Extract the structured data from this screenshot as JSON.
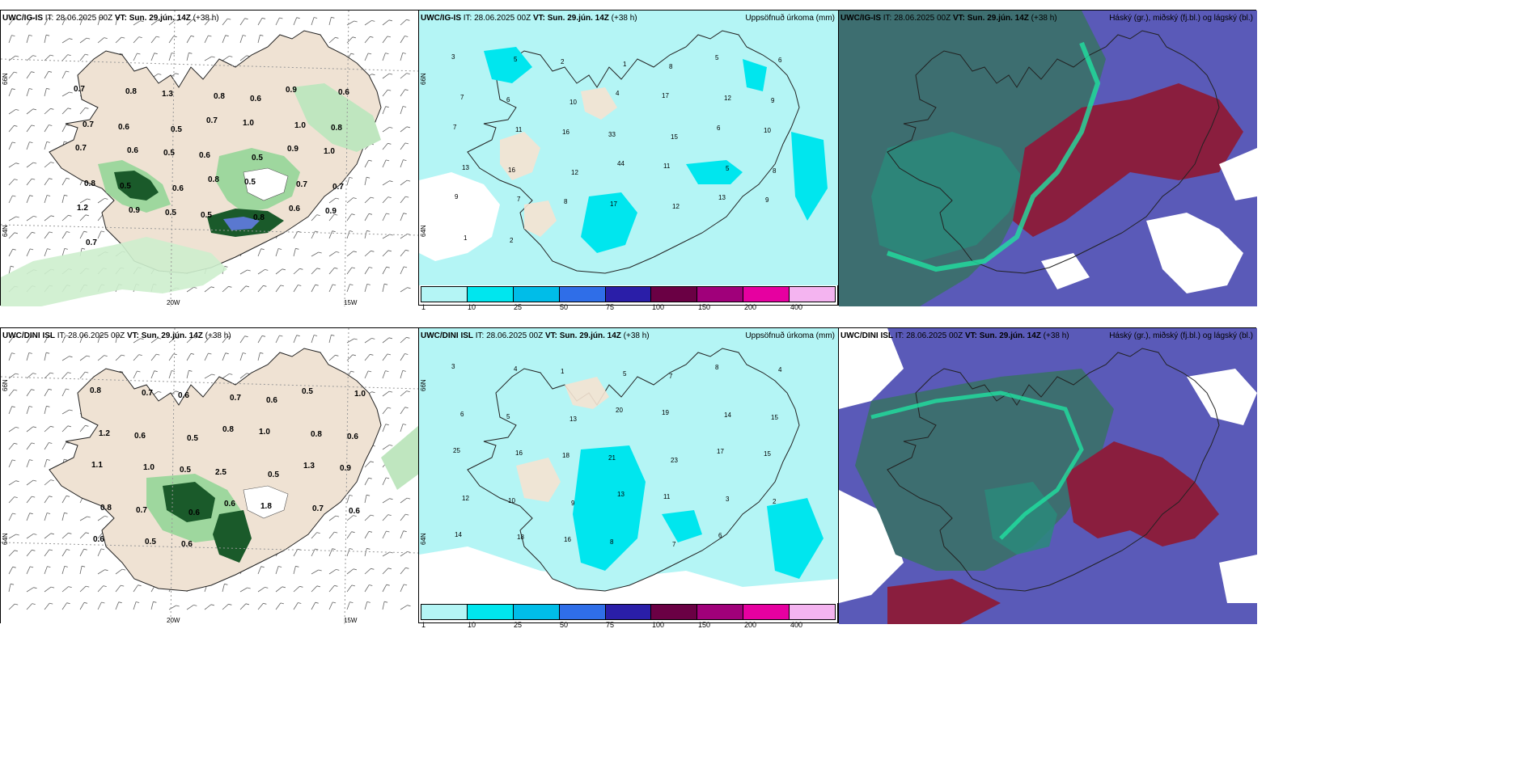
{
  "panels": {
    "tl": {
      "model": "UWC/IG-IS",
      "it": "IT: 28.06.2025 00Z",
      "vt": "VT: Sun. 29.jún. 14Z",
      "lead": "(+38 h)",
      "right": ""
    },
    "tm": {
      "model": "UWC/IG-IS",
      "it": "IT: 28.06.2025 00Z",
      "vt": "VT: Sun. 29.jún. 14Z",
      "lead": "(+38 h)",
      "right": "Uppsöfnuð úrkoma (mm)"
    },
    "tr": {
      "model": "UWC/IG-IS",
      "it": "IT: 28.06.2025 00Z",
      "vt": "VT: Sun. 29.jún. 14Z",
      "lead": "(+38 h)",
      "right": "Háský (gr.), miðský (fj.bl.) og lágský (bl.)"
    },
    "bl": {
      "model": "UWC/DINI ISL",
      "it": "IT: 28.06.2025 00Z",
      "vt": "VT: Sun. 29.jún. 14Z",
      "lead": "(+38 h)",
      "right": ""
    },
    "bm": {
      "model": "UWC/DINI ISL",
      "it": "IT: 28.06.2025 00Z",
      "vt": "VT: Sun. 29.jún. 14Z",
      "lead": "(+38 h)",
      "right": "Uppsöfnuð úrkoma (mm)"
    },
    "br": {
      "model": "UWC/DINI ISL",
      "it": "IT: 28.06.2025 00Z",
      "vt": "VT: Sun. 29.jún. 14Z",
      "lead": "(+38 h)",
      "right": "Háský (gr.), miðský (fj.bl.) og lágský (bl.)"
    }
  },
  "axes": {
    "lon20": "20W",
    "lon15": "15W",
    "lat66": "66N",
    "lat64": "64N"
  },
  "colorbar": {
    "ticks": [
      "1",
      "10",
      "25",
      "50",
      "75",
      "100",
      "150",
      "200",
      "400"
    ],
    "colors": [
      "#b4f5f5",
      "#00e6ee",
      "#00bde8",
      "#2f6ee8",
      "#2a1ea8",
      "#6a0044",
      "#a0007a",
      "#e600a0",
      "#f4b4f0"
    ]
  },
  "labels_tl": [
    "0.7",
    "0.8",
    "1.3",
    "0.8",
    "0.6",
    "0.9",
    "0.6",
    "0.7",
    "0.6",
    "0.5",
    "0.7",
    "1.0",
    "1.0",
    "0.8",
    "0.7",
    "0.6",
    "0.5",
    "0.6",
    "0.5",
    "0.9",
    "1.0",
    "0.8",
    "0.5",
    "0.6",
    "0.8",
    "0.5",
    "0.7",
    "0.7",
    "1.2",
    "0.9",
    "0.5",
    "0.5",
    "0.8",
    "0.6",
    "0.9",
    "0.7"
  ],
  "labels_bl": [
    "0.8",
    "0.7",
    "0.6",
    "0.7",
    "0.6",
    "0.5",
    "1.0",
    "1.2",
    "0.6",
    "0.5",
    "0.8",
    "1.0",
    "0.8",
    "0.6",
    "1.1",
    "1.0",
    "0.5",
    "2.5",
    "0.5",
    "1.3",
    "0.9",
    "0.8",
    "0.7",
    "0.6",
    "0.6",
    "1.8",
    "0.7",
    "0.6",
    "0.6",
    "0.5",
    "0.6"
  ],
  "labels_tm": [
    "3",
    "5",
    "2",
    "1",
    "8",
    "5",
    "6",
    "7",
    "6",
    "10",
    "4",
    "17",
    "12",
    "9",
    "7",
    "11",
    "16",
    "33",
    "15",
    "6",
    "10",
    "13",
    "16",
    "12",
    "44",
    "11",
    "5",
    "8",
    "9",
    "7",
    "8",
    "17",
    "12",
    "13",
    "9",
    "1",
    "2"
  ],
  "labels_bm": [
    "3",
    "4",
    "1",
    "5",
    "7",
    "8",
    "4",
    "6",
    "5",
    "13",
    "20",
    "19",
    "14",
    "15",
    "25",
    "16",
    "18",
    "21",
    "23",
    "17",
    "15",
    "12",
    "10",
    "9",
    "13",
    "11",
    "3",
    "2",
    "14",
    "18",
    "16",
    "8",
    "7",
    "6"
  ]
}
